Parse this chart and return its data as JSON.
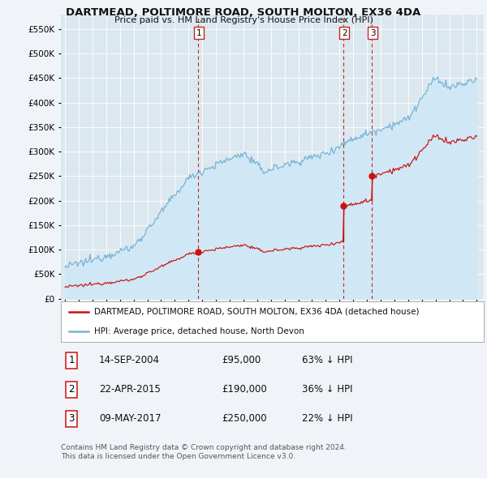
{
  "title": "DARTMEAD, POLTIMORE ROAD, SOUTH MOLTON, EX36 4DA",
  "subtitle": "Price paid vs. HM Land Registry's House Price Index (HPI)",
  "legend_text1": "DARTMEAD, POLTIMORE ROAD, SOUTH MOLTON, EX36 4DA (detached house)",
  "legend_text2": "HPI: Average price, detached house, North Devon",
  "hpi_color": "#7ab3d4",
  "hpi_fill_color": "#d0e8f5",
  "property_color": "#cc1111",
  "background_color": "#f0f4f8",
  "plot_bg_color": "#dce8f0",
  "grid_color": "#ffffff",
  "ylim": [
    0,
    580000
  ],
  "yticks": [
    0,
    50000,
    100000,
    150000,
    200000,
    250000,
    300000,
    350000,
    400000,
    450000,
    500000,
    550000
  ],
  "transactions": [
    {
      "label": "1",
      "date": "14-SEP-2004",
      "price": 95000,
      "pct": "63% ↓ HPI",
      "x_year": 2004.71
    },
    {
      "label": "2",
      "date": "22-APR-2015",
      "price": 190000,
      "pct": "36% ↓ HPI",
      "x_year": 2015.31
    },
    {
      "label": "3",
      "date": "09-MAY-2017",
      "price": 250000,
      "pct": "22% ↓ HPI",
      "x_year": 2017.36
    }
  ],
  "footer_line1": "Contains HM Land Registry data © Crown copyright and database right 2024.",
  "footer_line2": "This data is licensed under the Open Government Licence v3.0.",
  "xlim_start": 1994.7,
  "xlim_end": 2025.5
}
